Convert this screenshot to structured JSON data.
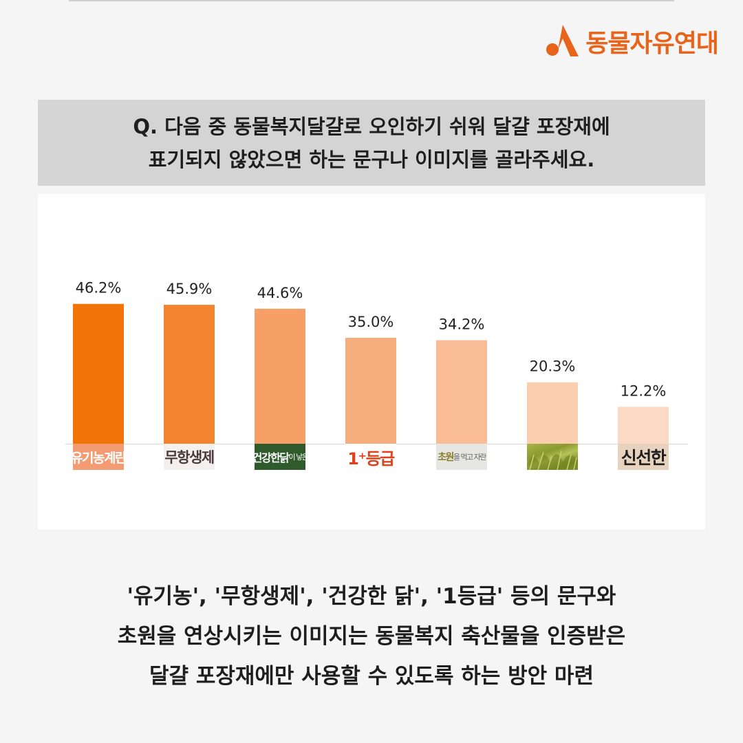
{
  "brand": {
    "name": "동물자유연대",
    "accent_color": "#e8641b",
    "icon": "animal-freedom-logo-icon"
  },
  "question": {
    "line1": "Q. 다음 중 동물복지달걀로 오인하기 쉬워 달걀 포장재에",
    "line2": "표기되지 않았으면 하는 문구나 이미지를 골라주세요."
  },
  "chart_data": {
    "type": "bar",
    "categories": [
      "유기농계란",
      "무항생제",
      "건강한 닭이 낳은",
      "1+등급",
      "초원을 먹고 자란",
      "초원 이미지",
      "신선한"
    ],
    "values": [
      46.2,
      45.9,
      44.6,
      35.0,
      34.2,
      20.3,
      12.2
    ],
    "value_labels": [
      "46.2%",
      "45.9%",
      "44.6%",
      "35.0%",
      "34.2%",
      "20.3%",
      "12.2%"
    ],
    "bar_colors": [
      "#f07408",
      "#f3832f",
      "#f6a068",
      "#f7ae7e",
      "#f9bc96",
      "#fbcdb0",
      "#fcd9c5"
    ],
    "title": "",
    "xlabel": "",
    "ylabel": "",
    "ylim": [
      0,
      55
    ],
    "grid": false,
    "legend": "none"
  },
  "category_labels": {
    "label1": "유기농계란",
    "label2": "무항생제",
    "label3_main": "건강한닭",
    "label3_small": "이 낳은",
    "label4": "1⁺등급",
    "label5_main": "초원",
    "label5_small": "을 먹고 자란",
    "label7": "신선한"
  },
  "conclusion": {
    "line1": "'유기농', '무항생제', '건강한 닭', '1등급' 등의 문구와",
    "line2": "초원을 연상시키는 이미지는 동물복지 축산물을 인증받은",
    "line3": "달걀 포장재에만 사용할 수 있도록 하는 방안 마련"
  }
}
